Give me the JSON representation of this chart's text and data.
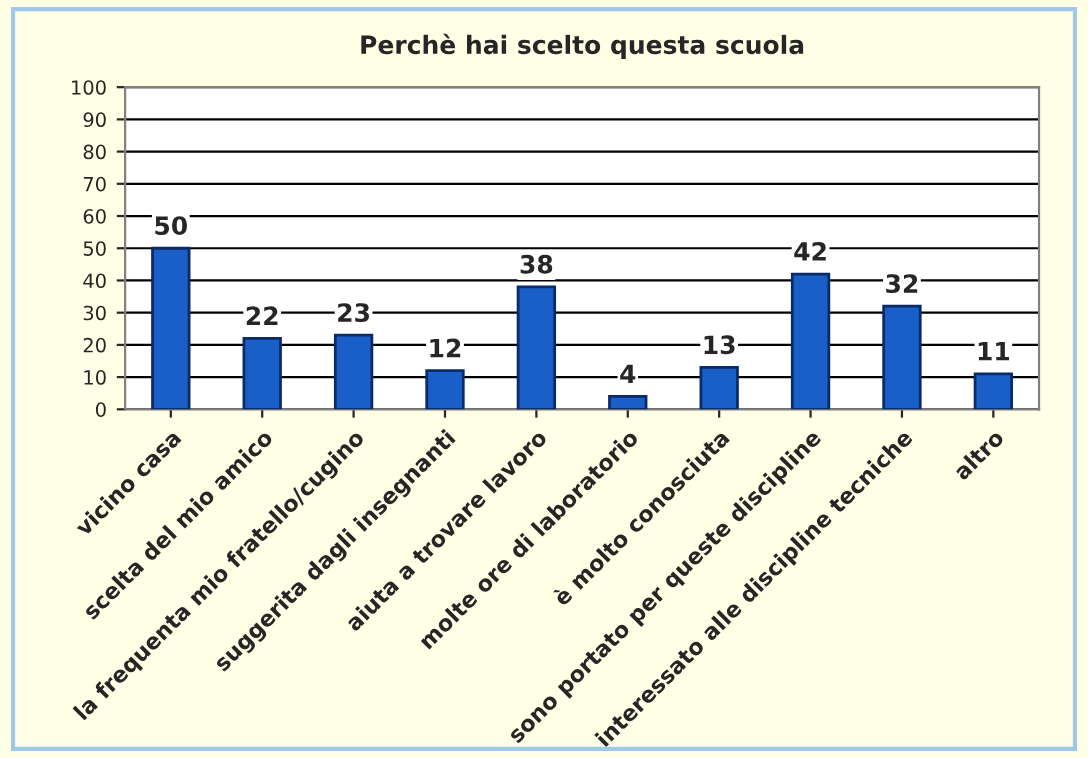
{
  "chart_data": {
    "type": "bar",
    "title": "Perchè hai scelto questa scuola",
    "categories": [
      "vicino casa",
      "scelta del mio amico",
      "la frequenta mio fratello/cugino",
      "suggerita dagli insegnanti",
      "aiuta a trovare lavoro",
      "molte ore di laboratorio",
      "è molto conosciuta",
      "sono portato per queste discipline",
      "interessato alle discipline tecniche",
      "altro"
    ],
    "values": [
      50,
      22,
      23,
      12,
      38,
      4,
      13,
      42,
      32,
      11
    ],
    "color": "#1a5fc8",
    "ylim": [
      0,
      100
    ],
    "yticks": [
      0,
      10,
      20,
      30,
      40,
      50,
      60,
      70,
      80,
      90,
      100
    ],
    "grid": "y",
    "data_labels": true
  }
}
